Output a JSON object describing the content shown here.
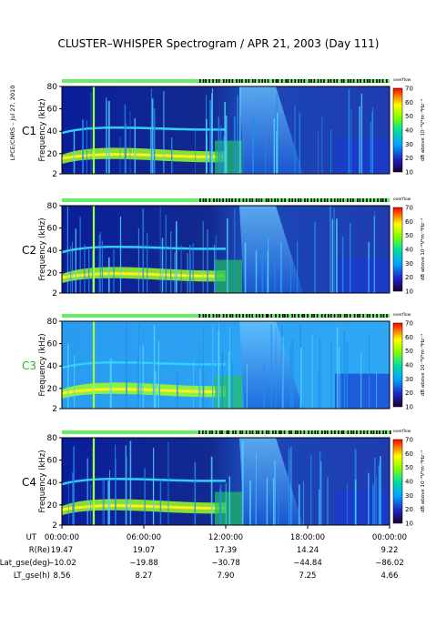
{
  "title": "CLUSTER–WHISPER Spectrogram / APR 21, 2003 (Day 111)",
  "side_label": "LPCE/CNRS – Jul 27, 2010",
  "colorbar": {
    "ticks": [
      "70",
      "60",
      "50",
      "40",
      "30",
      "20",
      "10"
    ],
    "label": "dB above 10⁻⁸V²m⁻²Hz⁻¹",
    "top_label": "overflow"
  },
  "chart_data": {
    "type": "heatmap",
    "panels": [
      {
        "name": "C1",
        "ylabel": "Frequency (kHz)",
        "yticks": [
          "80",
          "60",
          "40",
          "20",
          "2"
        ],
        "ylim": [
          2,
          80
        ],
        "color": "#000000"
      },
      {
        "name": "C2",
        "ylabel": "Frequency (kHz)",
        "yticks": [
          "80",
          "60",
          "40",
          "20",
          "2"
        ],
        "ylim": [
          2,
          80
        ],
        "color": "#000000"
      },
      {
        "name": "C3",
        "ylabel": "Frequency (kHz)",
        "yticks": [
          "80",
          "60",
          "40",
          "20",
          "2"
        ],
        "ylim": [
          2,
          80
        ],
        "color": "#22bb22"
      },
      {
        "name": "C4",
        "ylabel": "Frequency (kHz)",
        "yticks": [
          "80",
          "60",
          "40",
          "20",
          "2"
        ],
        "ylim": [
          2,
          80
        ],
        "color": "#000000"
      }
    ],
    "xlabel": "UT",
    "xticks": [
      "00:00:00",
      "06:00:00",
      "12:00:00",
      "18:00:00",
      "00:00:00"
    ],
    "zlim": [
      10,
      70
    ],
    "orbit_table": [
      {
        "label": "R(Re)",
        "values": [
          "19.47",
          "19.07",
          "17.39",
          "14.24",
          "9.22"
        ]
      },
      {
        "label": "Lat_gse(deg)",
        "values": [
          "−10.02",
          "−19.88",
          "−30.78",
          "−44.84",
          "−86.02"
        ]
      },
      {
        "label": "LT_gse(h)",
        "values": [
          "8.56",
          "8.27",
          "7.90",
          "7.25",
          "4.66"
        ]
      }
    ]
  }
}
